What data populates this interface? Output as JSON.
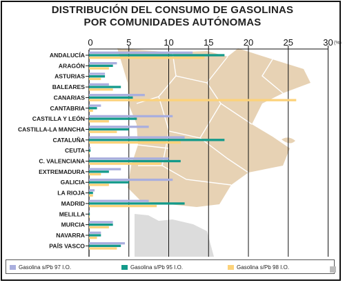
{
  "title_line1": "DISTRIBUCIÓN DEL CONSUMO DE GASOLINAS",
  "title_line2": "POR COMUNIDADES AUTÓNOMAS",
  "x_unit": "(%)",
  "colors": {
    "series_97": "#a9aede",
    "series_95": "#139a8a",
    "series_98": "#fcd27a",
    "map_fill": "#e7d2b4",
    "map_stroke": "#ffffff",
    "shadow": "#dcdcdc"
  },
  "chart_data": {
    "type": "bar",
    "orientation": "horizontal",
    "title": "DISTRIBUCIÓN DEL CONSUMO DE GASOLINAS POR COMUNIDADES AUTÓNOMAS",
    "xlabel": "(%)",
    "xlim": [
      0,
      30
    ],
    "xticks": [
      0,
      5,
      10,
      15,
      20,
      25,
      30
    ],
    "grid": true,
    "legend_position": "bottom",
    "categories": [
      "ANDALUCÍA",
      "ARAGÓN",
      "ASTURIAS",
      "BALEARES",
      "CANARIAS",
      "CANTABRIA",
      "CASTILLA Y LEÓN",
      "CASTILLA-LA MANCHA",
      "CATALUÑA",
      "CEUTA",
      "C. VALENCIANA",
      "EXTREMADURA",
      "GALICIA",
      "LA RIOJA",
      "MADRID",
      "MELILLA",
      "MURCIA",
      "NAVARRA",
      "PAÍS VASCO"
    ],
    "series": [
      {
        "name": "Gasolina s/Pb 97 I.O.",
        "values": [
          13.0,
          3.5,
          2.0,
          2.5,
          7.0,
          1.5,
          10.5,
          7.5,
          12.0,
          0.2,
          10.0,
          4.0,
          10.5,
          0.7,
          7.5,
          0.1,
          3.0,
          1.5,
          4.5
        ]
      },
      {
        "name": "Gasolina s/Pb 95 I.O.",
        "values": [
          17.0,
          3.0,
          2.0,
          4.0,
          5.5,
          1.0,
          6.0,
          5.0,
          17.0,
          0.2,
          11.5,
          2.5,
          5.0,
          0.5,
          12.0,
          0.1,
          3.0,
          1.5,
          4.0
        ]
      },
      {
        "name": "Gasolina s/Pb 98 I.O.",
        "values": [
          14.5,
          2.5,
          1.5,
          3.0,
          26.0,
          0.5,
          2.5,
          3.5,
          11.5,
          0.1,
          9.0,
          1.5,
          2.5,
          0.5,
          8.5,
          0.1,
          2.5,
          1.0,
          3.5
        ]
      }
    ]
  }
}
